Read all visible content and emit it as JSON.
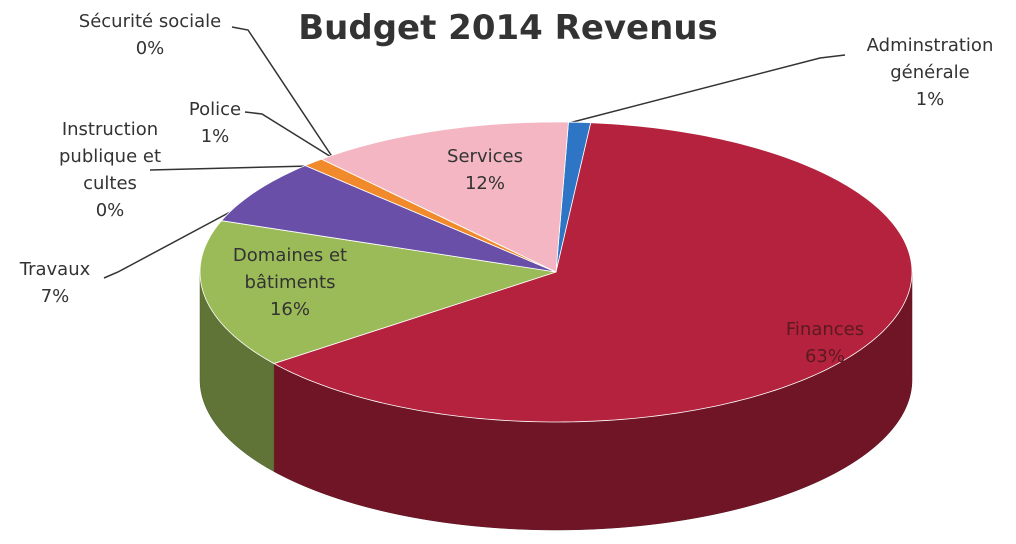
{
  "chart_data": {
    "type": "pie",
    "title": "Budget 2014 Revenus",
    "categories": [
      "Adminstration générale",
      "Finances",
      "Domaines et bâtiments",
      "Travaux",
      "Instruction publique et cultes",
      "Police",
      "Sécurité sociale",
      "Services"
    ],
    "values": [
      1,
      63,
      16,
      7,
      0,
      1,
      0,
      12
    ],
    "value_labels": [
      "1%",
      "63%",
      "16%",
      "7%",
      "0%",
      "1%",
      "0%",
      "12%"
    ],
    "colors": [
      "#2e75c6",
      "#b5223d",
      "#9bbb59",
      "#6a4fa8",
      "#2aa0b5",
      "#f08a2a",
      "#3a3a8a",
      "#f4b6c2"
    ]
  }
}
